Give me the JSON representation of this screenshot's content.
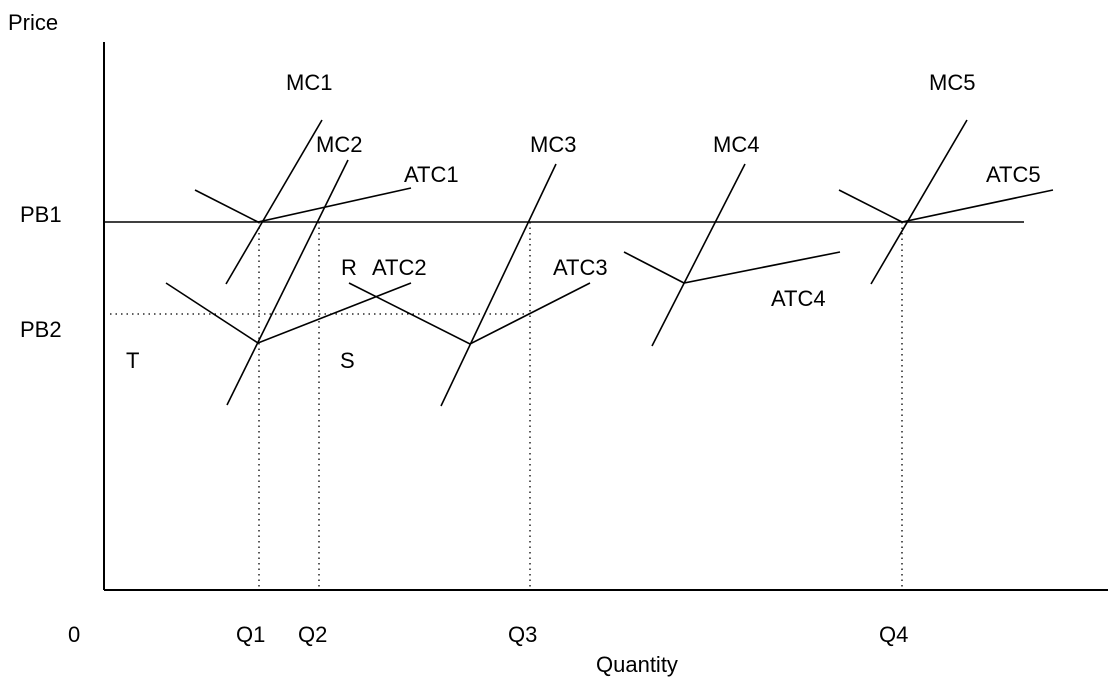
{
  "axes": {
    "y_label": "Price",
    "x_label": "Quantity",
    "origin_label": "0"
  },
  "price_levels": {
    "pb1": "PB1",
    "pb2": "PB2"
  },
  "quantities": {
    "q1": "Q1",
    "q2": "Q2",
    "q3": "Q3",
    "q4": "Q4"
  },
  "curves": {
    "mc1": "MC1",
    "mc2": "MC2",
    "mc3": "MC3",
    "mc4": "MC4",
    "mc5": "MC5",
    "atc1": "ATC1",
    "atc2": "ATC2",
    "atc3": "ATC3",
    "atc4": "ATC4",
    "atc5": "ATC5"
  },
  "region_labels": {
    "t": "T",
    "s": "S",
    "r": "R"
  }
}
